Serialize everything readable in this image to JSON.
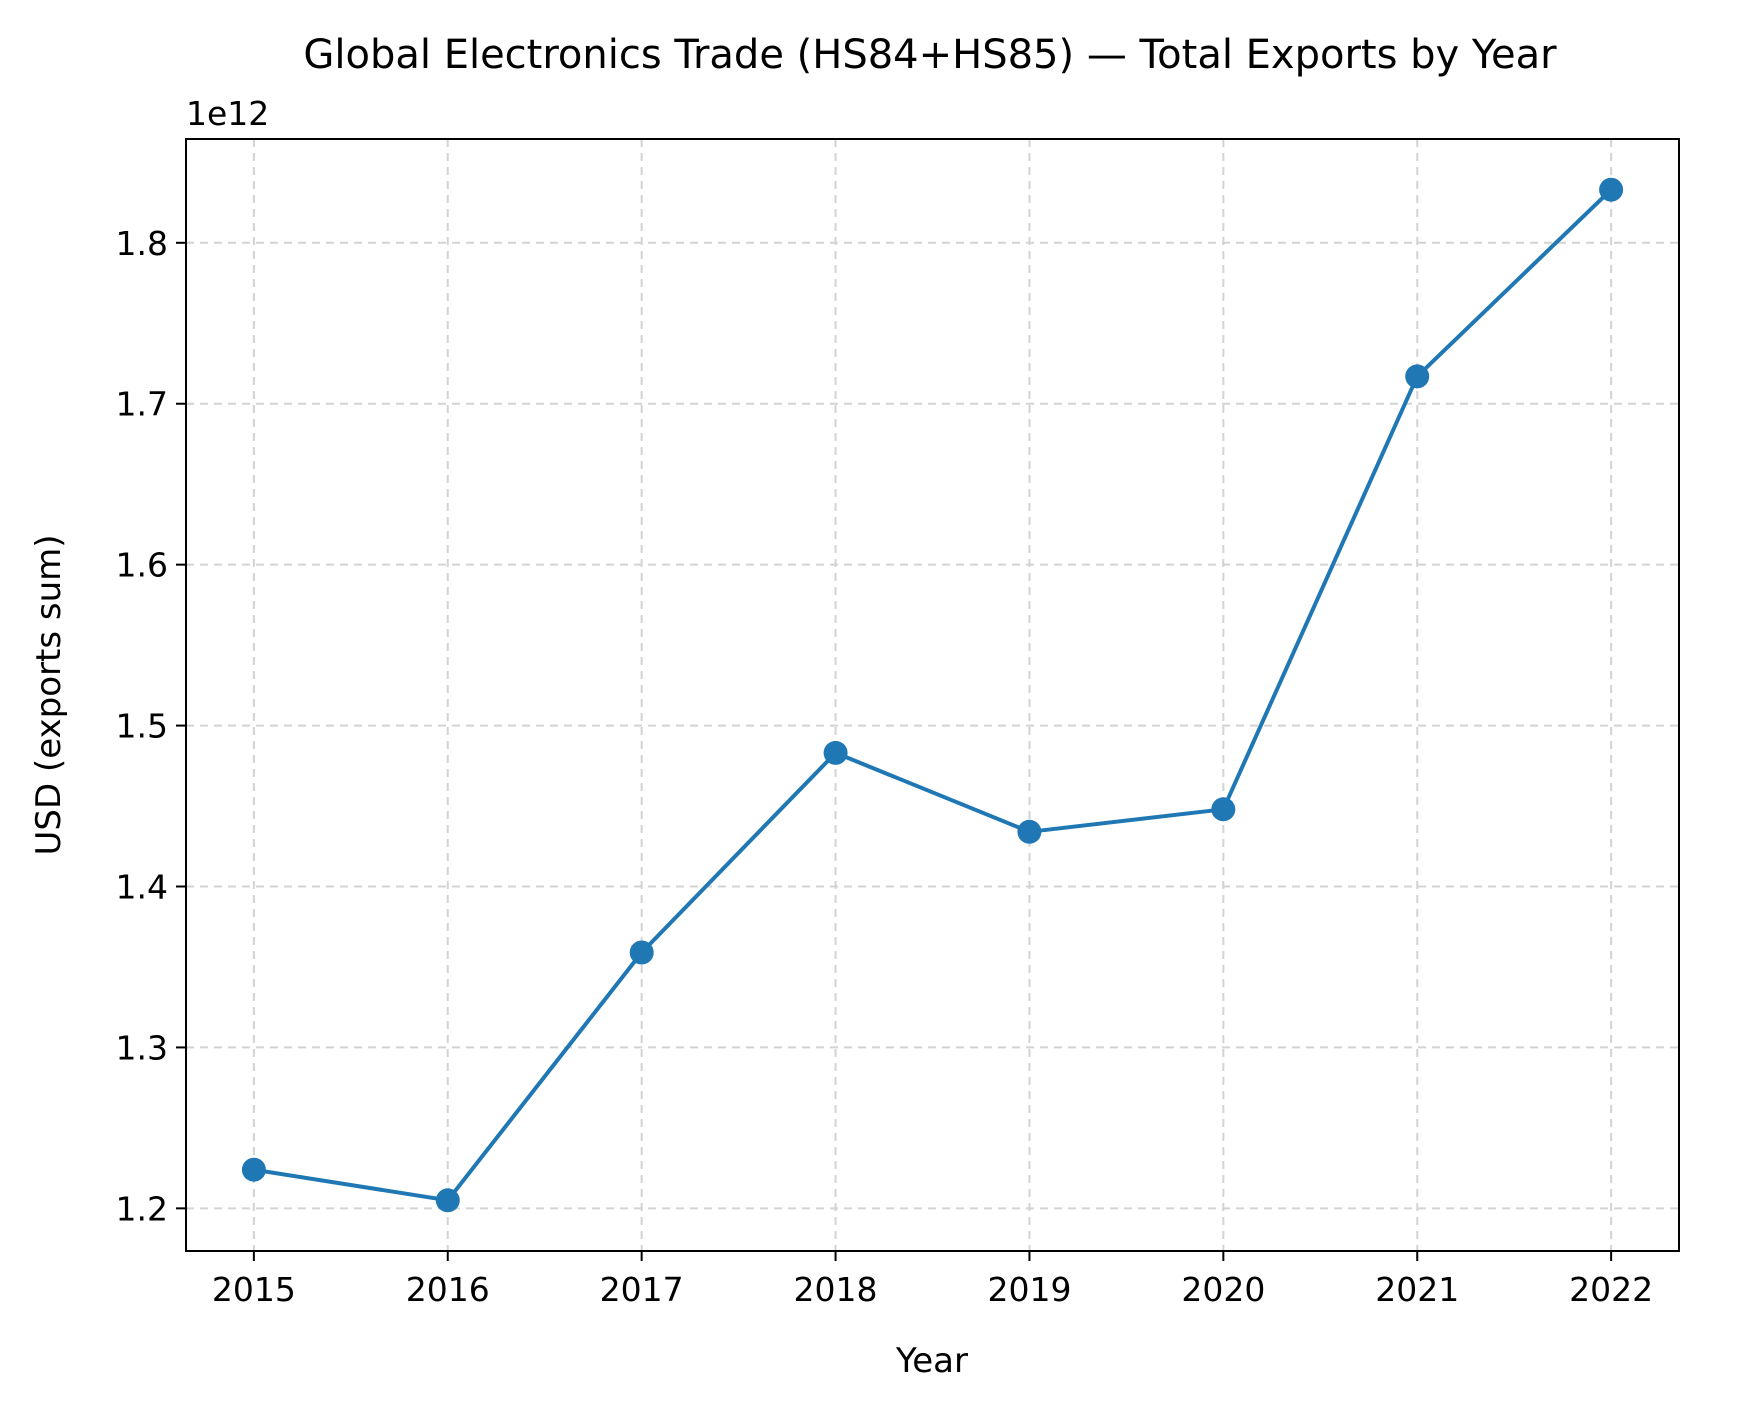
{
  "chart_data": {
    "type": "line",
    "title": "Global Electronics Trade (HS84+HS85) — Total Exports by Year",
    "xlabel": "Year",
    "ylabel": "USD (exports sum)",
    "y_offset_label": "1e12",
    "x": [
      2015,
      2016,
      2017,
      2018,
      2019,
      2020,
      2021,
      2022
    ],
    "series": [
      {
        "values": [
          1224000000000.0,
          1205000000000.0,
          1359000000000.0,
          1483000000000.0,
          1434000000000.0,
          1448000000000.0,
          1717000000000.0,
          1833000000000.0
        ],
        "color": "#1f77b4"
      }
    ],
    "x_ticks": [
      "2015",
      "2016",
      "2017",
      "2018",
      "2019",
      "2020",
      "2021",
      "2022"
    ],
    "y_ticks": [
      1.2,
      1.3,
      1.4,
      1.5,
      1.6,
      1.7,
      1.8
    ],
    "y_tick_labels": [
      "1.2",
      "1.3",
      "1.4",
      "1.5",
      "1.6",
      "1.7",
      "1.8"
    ],
    "xlim": [
      2014.65,
      2022.35
    ],
    "ylim": [
      1.1735,
      1.8645
    ],
    "y_scale": 1000000000000.0,
    "grid": true,
    "grid_style": "dashed",
    "marker": "circle"
  }
}
